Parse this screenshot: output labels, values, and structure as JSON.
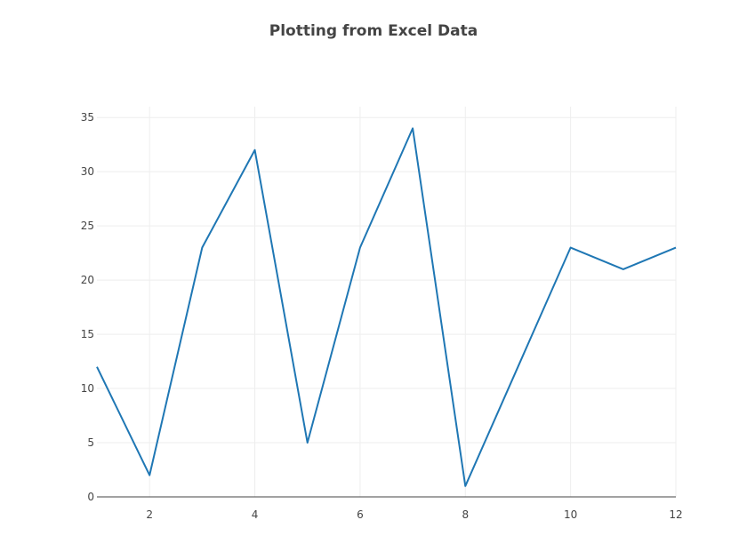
{
  "chart_data": {
    "type": "line",
    "title": "Plotting from Excel Data",
    "xlabel": "",
    "ylabel": "",
    "x": [
      1,
      2,
      3,
      4,
      5,
      6,
      7,
      8,
      9,
      10,
      11,
      12
    ],
    "series": [
      {
        "values": [
          12,
          2,
          23,
          32,
          5,
          23,
          34,
          1,
          12,
          23,
          21,
          23
        ],
        "color": "#1f77b4"
      }
    ],
    "xlim": [
      1,
      12
    ],
    "ylim": [
      0,
      36
    ],
    "x_ticks": [
      2,
      4,
      6,
      8,
      10,
      12
    ],
    "y_ticks": [
      0,
      5,
      10,
      15,
      20,
      25,
      30,
      35
    ],
    "grid": true,
    "legend": "none"
  }
}
